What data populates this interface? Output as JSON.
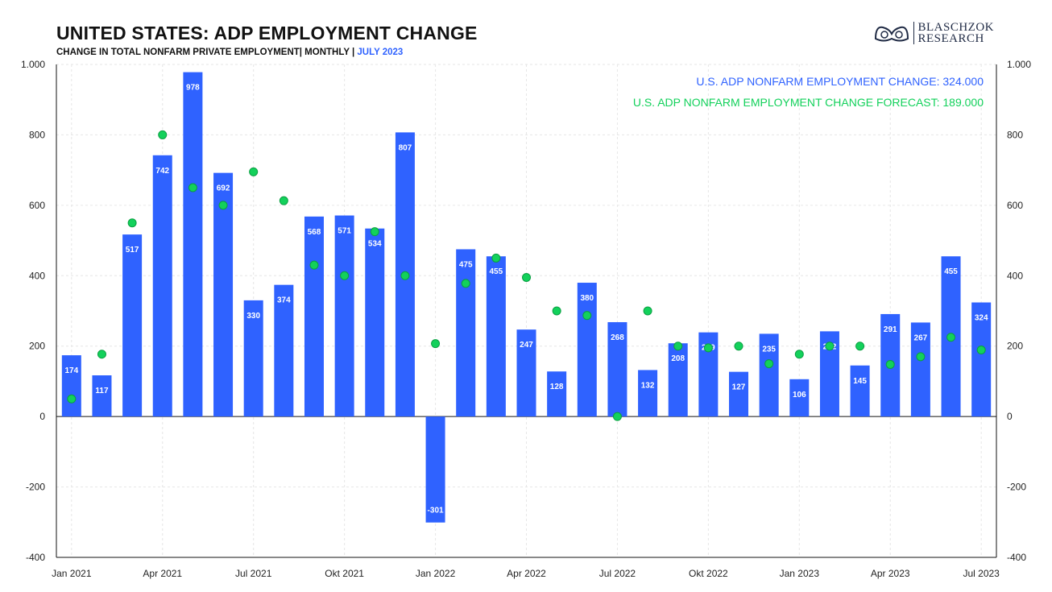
{
  "header": {
    "title": "UNITED STATES: ADP EMPLOYMENT CHANGE",
    "subtitle": "CHANGE IN TOTAL NONFARM PRIVATE EMPLOYMENT| MONTHLY |",
    "subtitle_highlight": "JULY 2023"
  },
  "logo": {
    "line1": "BLASCHZOK",
    "line2": "RESEARCH",
    "icon": "seal-icon"
  },
  "colors": {
    "bar": "#2f62ff",
    "forecast": "#13d15b",
    "axis": "#111111",
    "grid": "#e6e6e6"
  },
  "chart_data": {
    "type": "bar",
    "categories": [
      "Jan 2021",
      "Feb 2021",
      "Mar 2021",
      "Apr 2021",
      "May 2021",
      "Jun 2021",
      "Jul 2021",
      "Aug 2021",
      "Sep 2021",
      "Okt 2021",
      "Nov 2021",
      "Dec 2021",
      "Jan 2022",
      "Feb 2022",
      "Mar 2022",
      "Apr 2022",
      "May 2022",
      "Jun 2022",
      "Jul 2022",
      "Aug 2022",
      "Sep 2022",
      "Okt 2022",
      "Nov 2022",
      "Dec 2022",
      "Jan 2023",
      "Feb 2023",
      "Mar 2023",
      "Apr 2023",
      "May 2023",
      "Jun 2023",
      "Jul 2023"
    ],
    "x_tick_labels": [
      "Jan 2021",
      "Apr 2021",
      "Jul 2021",
      "Okt 2021",
      "Jan 2022",
      "Apr 2022",
      "Jul 2022",
      "Okt 2022",
      "Jan 2023",
      "Apr 2023",
      "Jul 2023"
    ],
    "series": [
      {
        "name": "U.S. ADP NONFARM EMPLOYMENT CHANGE",
        "type": "bar",
        "values": [
          174,
          117,
          517,
          742,
          978,
          692,
          330,
          374,
          568,
          571,
          534,
          807,
          -301,
          475,
          455,
          247,
          128,
          380,
          268,
          132,
          208,
          239,
          127,
          235,
          106,
          242,
          145,
          291,
          267,
          455,
          324
        ],
        "labels": [
          "174",
          "117",
          "517",
          "742",
          "978",
          "692",
          "330",
          "374",
          "568",
          "571",
          "534",
          "807",
          "-301",
          "475",
          "455",
          "247",
          "128",
          "380",
          "268",
          "132",
          "208",
          "239",
          "127",
          "235",
          "106",
          "242",
          "145",
          "291",
          "267",
          "455",
          "324"
        ]
      },
      {
        "name": "U.S. ADP NONFARM EMPLOYMENT CHANGE FORECAST",
        "type": "scatter",
        "values": [
          50,
          177,
          550,
          800,
          650,
          600,
          695,
          613,
          430,
          400,
          525,
          400,
          207,
          378,
          450,
          395,
          300,
          287,
          0,
          300,
          200,
          195,
          200,
          150,
          177,
          200,
          200,
          148,
          170,
          225,
          189
        ]
      }
    ],
    "legend": [
      "U.S. ADP NONFARM EMPLOYMENT CHANGE: 324.000",
      "U.S. ADP NONFARM EMPLOYMENT CHANGE FORECAST: 189.000"
    ],
    "legend_placement": "top-right",
    "ylim": [
      -400,
      1000
    ],
    "y_ticks": [
      -400,
      -200,
      0,
      200,
      400,
      600,
      800,
      1000
    ],
    "y_tick_labels": [
      "-400",
      "-200",
      "0",
      "200",
      "400",
      "600",
      "800",
      "1.000"
    ],
    "dual_y_axis": true,
    "grid": true,
    "xlabel": "",
    "ylabel": ""
  }
}
